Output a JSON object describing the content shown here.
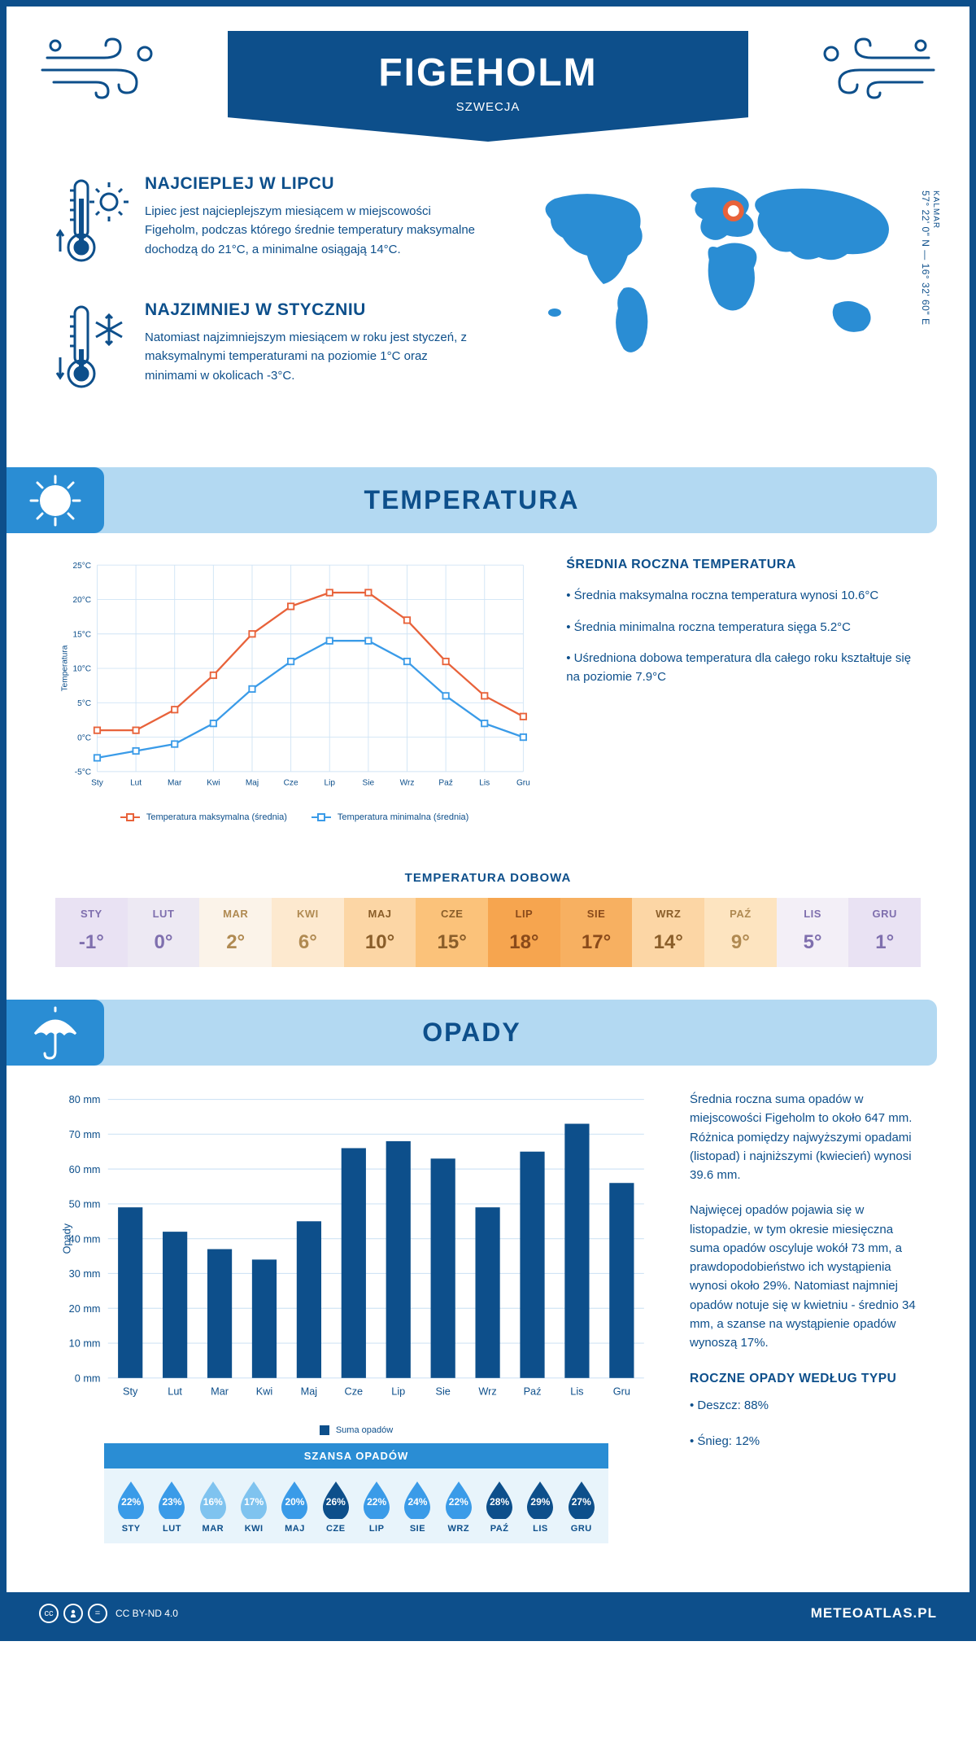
{
  "header": {
    "title": "FIGEHOLM",
    "subtitle": "SZWECJA"
  },
  "coords": {
    "region": "KALMAR",
    "text": "57° 22' 0\" N — 16° 32' 60\" E"
  },
  "facts": {
    "warm": {
      "title": "NAJCIEPLEJ W LIPCU",
      "body": "Lipiec jest najcieplejszym miesiącem w miejscowości Figeholm, podczas którego średnie temperatury maksymalne dochodzą do 21°C, a minimalne osiągają 14°C."
    },
    "cold": {
      "title": "NAJZIMNIEJ W STYCZNIU",
      "body": "Natomiast najzimniejszym miesiącem w roku jest styczeń, z maksymalnymi temperaturami na poziomie 1°C oraz minimami w okolicach -3°C."
    }
  },
  "temperature": {
    "section_title": "TEMPERATURA",
    "chart": {
      "type": "line",
      "y_axis_title": "Temperatura",
      "months": [
        "Sty",
        "Lut",
        "Mar",
        "Kwi",
        "Maj",
        "Cze",
        "Lip",
        "Sie",
        "Wrz",
        "Paź",
        "Lis",
        "Gru"
      ],
      "y_min": -5,
      "y_max": 25,
      "y_step": 5,
      "y_suffix": "°C",
      "series": [
        {
          "name": "Temperatura maksymalna (średnia)",
          "color": "#e8623a",
          "values": [
            1,
            1,
            4,
            9,
            15,
            19,
            21,
            21,
            17,
            11,
            6,
            3
          ]
        },
        {
          "name": "Temperatura minimalna (średnia)",
          "color": "#3a9be8",
          "values": [
            -3,
            -2,
            -1,
            2,
            7,
            11,
            14,
            14,
            11,
            6,
            2,
            0
          ]
        }
      ],
      "grid_color": "#d0e4f5",
      "background": "#ffffff",
      "axis_font_size": 11
    },
    "info": {
      "title": "ŚREDNIA ROCZNA TEMPERATURA",
      "bullets": [
        "• Średnia maksymalna roczna temperatura wynosi 10.6°C",
        "• Średnia minimalna roczna temperatura sięga 5.2°C",
        "• Uśredniona dobowa temperatura dla całego roku kształtuje się na poziomie 7.9°C"
      ]
    },
    "daily": {
      "title": "TEMPERATURA DOBOWA",
      "months": [
        "STY",
        "LUT",
        "MAR",
        "KWI",
        "MAJ",
        "CZE",
        "LIP",
        "SIE",
        "WRZ",
        "PAŹ",
        "LIS",
        "GRU"
      ],
      "values": [
        "-1°",
        "0°",
        "2°",
        "6°",
        "10°",
        "15°",
        "18°",
        "17°",
        "14°",
        "9°",
        "5°",
        "1°"
      ],
      "bg_colors": [
        "#e9e2f3",
        "#ede9f3",
        "#fbf3e9",
        "#fde9cf",
        "#fcd6a5",
        "#fbc27a",
        "#f6a54f",
        "#f7b061",
        "#fcd6a5",
        "#fde4c0",
        "#f3eff7",
        "#e9e2f3"
      ],
      "text_colors": [
        "#7f6fae",
        "#7f6fae",
        "#b08a52",
        "#b08a52",
        "#8a5e2a",
        "#8a5e2a",
        "#8a4a1a",
        "#8a4a1a",
        "#8a5e2a",
        "#b08a52",
        "#7f6fae",
        "#7f6fae"
      ]
    }
  },
  "precipitation": {
    "section_title": "OPADY",
    "chart": {
      "type": "bar",
      "y_axis_title": "Opady",
      "months": [
        "Sty",
        "Lut",
        "Mar",
        "Kwi",
        "Maj",
        "Cze",
        "Lip",
        "Sie",
        "Wrz",
        "Paź",
        "Lis",
        "Gru"
      ],
      "values": [
        49,
        42,
        37,
        34,
        45,
        66,
        68,
        63,
        49,
        65,
        73,
        56
      ],
      "y_min": 0,
      "y_max": 80,
      "y_step": 10,
      "y_suffix": " mm",
      "bar_color": "#0d4f8b",
      "grid_color": "#d0e4f5",
      "legend_label": "Suma opadów"
    },
    "info": {
      "p1": "Średnia roczna suma opadów w miejscowości Figeholm to około 647 mm. Różnica pomiędzy najwyższymi opadami (listopad) i najniższymi (kwiecień) wynosi 39.6 mm.",
      "p2": "Najwięcej opadów pojawia się w listopadzie, w tym okresie miesięczna suma opadów oscyluje wokół 73 mm, a prawdopodobieństwo ich wystąpienia wynosi około 29%. Natomiast najmniej opadów notuje się w kwietniu - średnio 34 mm, a szanse na wystąpienie opadów wynoszą 17%.",
      "type_title": "ROCZNE OPADY WEDŁUG TYPU",
      "type_bullets": [
        "• Deszcz: 88%",
        "• Śnieg: 12%"
      ]
    },
    "chance": {
      "title": "SZANSA OPADÓW",
      "months": [
        "STY",
        "LUT",
        "MAR",
        "KWI",
        "MAJ",
        "CZE",
        "LIP",
        "SIE",
        "WRZ",
        "PAŹ",
        "LIS",
        "GRU"
      ],
      "values": [
        "22%",
        "23%",
        "16%",
        "17%",
        "20%",
        "26%",
        "22%",
        "24%",
        "22%",
        "28%",
        "29%",
        "27%"
      ],
      "colors": [
        "#3a9be8",
        "#3a9be8",
        "#7fc3ef",
        "#7fc3ef",
        "#3a9be8",
        "#0d4f8b",
        "#3a9be8",
        "#3a9be8",
        "#3a9be8",
        "#0d4f8b",
        "#0d4f8b",
        "#0d4f8b"
      ]
    }
  },
  "footer": {
    "license": "CC BY-ND 4.0",
    "brand": "METEOATLAS.PL"
  },
  "colors": {
    "primary": "#0d4f8b",
    "section_bg": "#b3d9f2",
    "section_icon_bg": "#2a8dd4"
  }
}
